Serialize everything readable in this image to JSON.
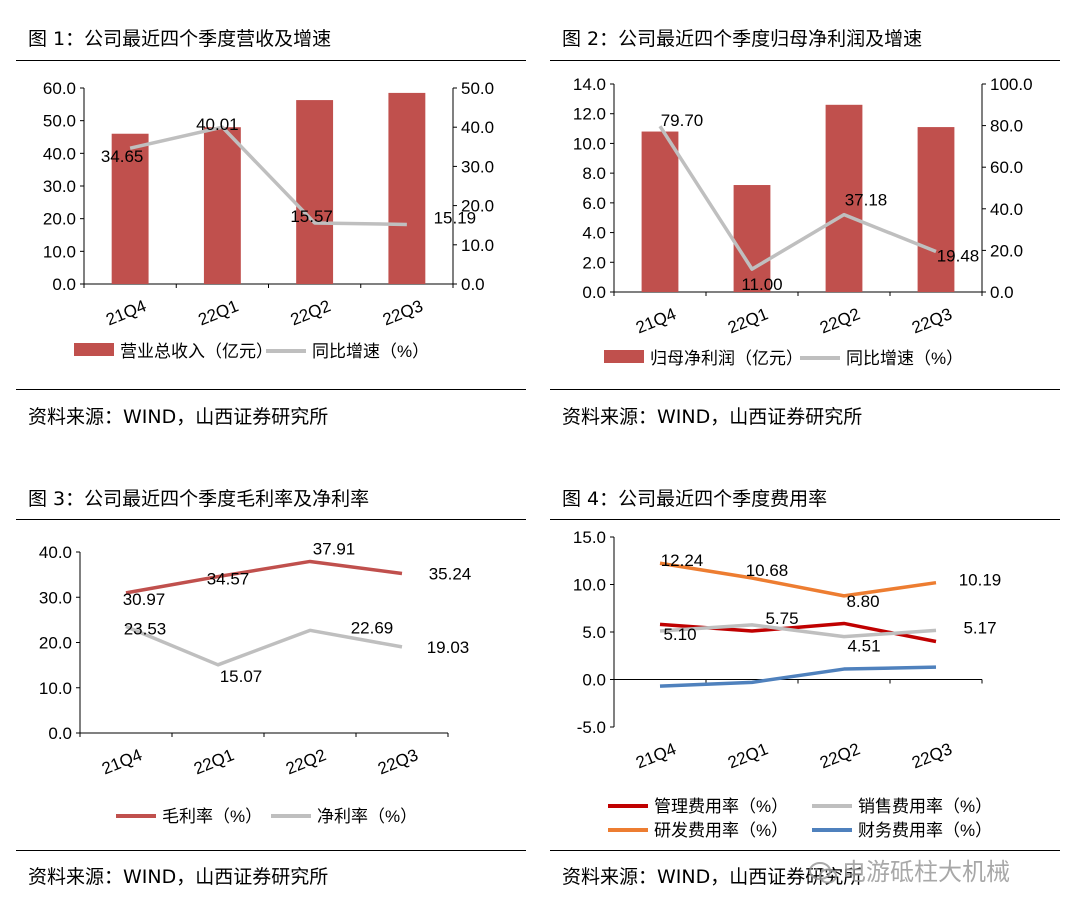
{
  "panels": [
    {
      "title": "图 1：公司最近四个季度营收及增速",
      "source": "资料来源：WIND，山西证券研究所"
    },
    {
      "title": "图 2：公司最近四个季度归母净利润及增速",
      "source": "资料来源：WIND，山西证券研究所"
    },
    {
      "title": "图 3：公司最近四个季度毛利率及净利率",
      "source": "资料来源：WIND，山西证券研究所"
    },
    {
      "title": "图 4：公司最近四个季度费用率",
      "source": "资料来源：WIND，山西证券研究所"
    }
  ],
  "watermark": "电游砥柱大机械",
  "chart_data": [
    {
      "type": "bar+line",
      "title": "图 1：公司最近四个季度营收及增速",
      "categories": [
        "21Q4",
        "22Q1",
        "22Q2",
        "22Q3"
      ],
      "ylim_left": [
        0,
        60
      ],
      "yticks_left": [
        "0.0",
        "10.0",
        "20.0",
        "30.0",
        "40.0",
        "50.0",
        "60.0"
      ],
      "ylim_right": [
        0,
        50
      ],
      "yticks_right": [
        "0.0",
        "10.0",
        "20.0",
        "30.0",
        "40.0",
        "50.0"
      ],
      "bar_series": {
        "name": "营业总收入（亿元）",
        "values": [
          46.0,
          48.0,
          56.3,
          58.5
        ],
        "color": "#c0504d"
      },
      "line_series": {
        "name": "同比增速（%）",
        "values": [
          34.65,
          40.01,
          15.57,
          15.19
        ],
        "labels": [
          "34.65",
          "40.01",
          "15.57",
          "15.19"
        ],
        "color": "#bfbfbf"
      },
      "legend": "bottom"
    },
    {
      "type": "bar+line",
      "title": "图 2：公司最近四个季度归母净利润及增速",
      "categories": [
        "21Q4",
        "22Q1",
        "22Q2",
        "22Q3"
      ],
      "ylim_left": [
        0,
        14
      ],
      "yticks_left": [
        "0.0",
        "2.0",
        "4.0",
        "6.0",
        "8.0",
        "10.0",
        "12.0",
        "14.0"
      ],
      "ylim_right": [
        0,
        100
      ],
      "yticks_right": [
        "0.0",
        "20.0",
        "40.0",
        "60.0",
        "80.0",
        "100.0"
      ],
      "bar_series": {
        "name": "归母净利润（亿元）",
        "values": [
          10.8,
          7.2,
          12.6,
          11.1
        ],
        "color": "#c0504d"
      },
      "line_series": {
        "name": "同比增速（%）",
        "values": [
          79.7,
          11.0,
          37.18,
          19.48
        ],
        "labels": [
          "79.70",
          "11.00",
          "37.18",
          "19.48"
        ],
        "color": "#bfbfbf"
      },
      "legend": "bottom"
    },
    {
      "type": "line",
      "title": "图 3：公司最近四个季度毛利率及净利率",
      "categories": [
        "21Q4",
        "22Q1",
        "22Q2",
        "22Q3"
      ],
      "ylim": [
        0,
        40
      ],
      "yticks": [
        "0.0",
        "10.0",
        "20.0",
        "30.0",
        "40.0"
      ],
      "series": [
        {
          "name": "毛利率（%）",
          "values": [
            30.97,
            34.57,
            37.91,
            35.24
          ],
          "labels": [
            "30.97",
            "34.57",
            "37.91",
            "35.24"
          ],
          "color": "#c0504d"
        },
        {
          "name": "净利率（%）",
          "values": [
            23.53,
            15.07,
            22.69,
            19.03
          ],
          "labels": [
            "23.53",
            "15.07",
            "22.69",
            "19.03"
          ],
          "color": "#bfbfbf"
        }
      ],
      "legend": "bottom"
    },
    {
      "type": "line",
      "title": "图 4：公司最近四个季度费用率",
      "categories": [
        "21Q4",
        "22Q1",
        "22Q2",
        "22Q3"
      ],
      "ylim": [
        -5,
        15
      ],
      "yticks": [
        "-5.0",
        "0.0",
        "5.0",
        "10.0",
        "15.0"
      ],
      "series": [
        {
          "name": "管理费用率（%）",
          "values": [
            5.8,
            5.1,
            5.9,
            4.0
          ],
          "labels": [],
          "color": "#c00000"
        },
        {
          "name": "销售费用率（%）",
          "values": [
            5.1,
            5.75,
            4.51,
            5.17
          ],
          "labels": [
            "5.10",
            "5.75",
            "4.51",
            "5.17"
          ],
          "color": "#bfbfbf"
        },
        {
          "name": "研发费用率（%）",
          "values": [
            12.24,
            10.68,
            8.8,
            10.19
          ],
          "labels": [
            "12.24",
            "10.68",
            "8.80",
            "10.19"
          ],
          "color": "#ed7d31"
        },
        {
          "name": "财务费用率（%）",
          "values": [
            -0.7,
            -0.3,
            1.1,
            1.3
          ],
          "labels": [],
          "color": "#4f81bd"
        }
      ],
      "legend": "bottom"
    }
  ]
}
